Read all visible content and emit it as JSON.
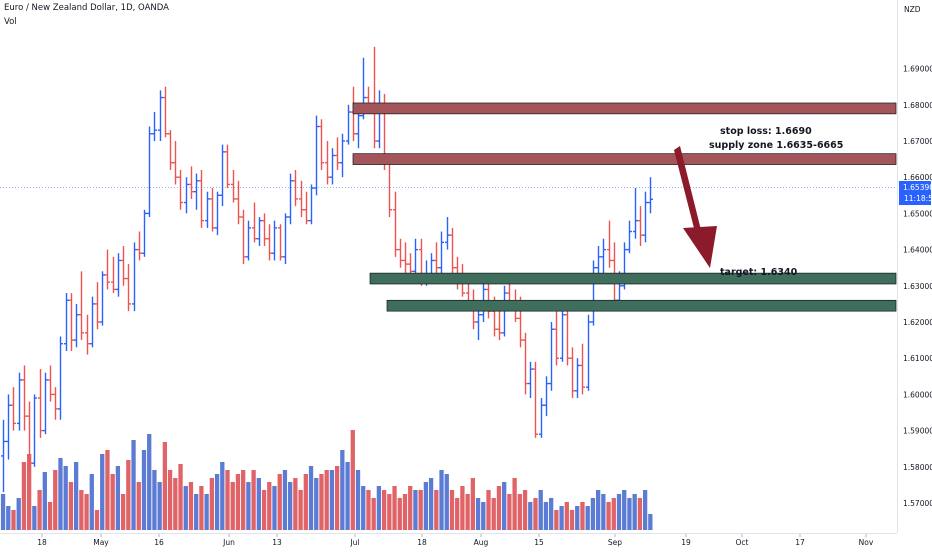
{
  "header": {
    "symbol_title": "Euro / New Zealand Dollar, 1D, OANDA",
    "volume_label": "Vol"
  },
  "price_axis": {
    "currency": "NZD",
    "last_price": "1.65390",
    "countdown": "11:18:50"
  },
  "annotations": {
    "stop_loss": "stop loss: 1.6690",
    "supply_zone": "supply zone 1.6635-6665",
    "target": "target: 1.6340"
  },
  "colors": {
    "up": "#2962ff",
    "down": "#ef5350",
    "vol_up": "#5b7bd5",
    "vol_down": "#e06368",
    "supply_fill": "#a4555a",
    "demand_fill": "#3f6e5c",
    "arrow": "#8b1a2b",
    "last_price_badge": "#2962ff"
  },
  "chart_data": {
    "type": "ohlc",
    "xlabel": "",
    "ylabel": "",
    "ylim": [
      1.5638,
      1.6988
    ],
    "grid": false,
    "y_ticks": [
      1.57,
      1.58,
      1.59,
      1.6,
      1.61,
      1.62,
      1.63,
      1.64,
      1.65,
      1.66,
      1.67,
      1.68,
      1.69
    ],
    "y_tick_labels": [
      "1.57000",
      "1.58000",
      "1.59000",
      "1.60000",
      "1.61000",
      "1.62000",
      "1.63000",
      "1.64000",
      "1.65000",
      "1.66000",
      "1.67000",
      "1.68000",
      "1.69000"
    ],
    "x_tick_labels": [
      "18",
      "May",
      "16",
      "Jun",
      "13",
      "Jul",
      "18",
      "Aug",
      "15",
      "Sep",
      "19",
      "Oct",
      "17",
      "Nov"
    ],
    "zones": [
      {
        "kind": "supply",
        "low": 1.6775,
        "high": 1.6805
      },
      {
        "kind": "supply",
        "low": 1.6635,
        "high": 1.6665
      },
      {
        "kind": "demand",
        "low": 1.6305,
        "high": 1.6335
      },
      {
        "kind": "demand",
        "low": 1.623,
        "high": 1.626
      }
    ],
    "last_price": 1.6539,
    "bars": [
      [
        1.583,
        1.593,
        1.573,
        1.587
      ],
      [
        1.587,
        1.6,
        1.582,
        1.597
      ],
      [
        1.597,
        1.602,
        1.59,
        1.592
      ],
      [
        1.592,
        1.606,
        1.59,
        1.604
      ],
      [
        1.604,
        1.608,
        1.59,
        1.594
      ],
      [
        1.594,
        1.598,
        1.579,
        1.581
      ],
      [
        1.581,
        1.6,
        1.58,
        1.599
      ],
      [
        1.599,
        1.607,
        1.588,
        1.59
      ],
      [
        1.59,
        1.606,
        1.589,
        1.604
      ],
      [
        1.604,
        1.608,
        1.598,
        1.6
      ],
      [
        1.6,
        1.602,
        1.593,
        1.596
      ],
      [
        1.596,
        1.616,
        1.593,
        1.614
      ],
      [
        1.614,
        1.628,
        1.612,
        1.626
      ],
      [
        1.626,
        1.628,
        1.612,
        1.615
      ],
      [
        1.615,
        1.625,
        1.613,
        1.622
      ],
      [
        1.622,
        1.634,
        1.615,
        1.617
      ],
      [
        1.617,
        1.622,
        1.611,
        1.614
      ],
      [
        1.614,
        1.627,
        1.613,
        1.625
      ],
      [
        1.625,
        1.631,
        1.618,
        1.62
      ],
      [
        1.62,
        1.634,
        1.619,
        1.633
      ],
      [
        1.633,
        1.64,
        1.629,
        1.631
      ],
      [
        1.631,
        1.638,
        1.628,
        1.629
      ],
      [
        1.629,
        1.639,
        1.627,
        1.637
      ],
      [
        1.637,
        1.641,
        1.63,
        1.632
      ],
      [
        1.632,
        1.636,
        1.623,
        1.625
      ],
      [
        1.625,
        1.642,
        1.623,
        1.64
      ],
      [
        1.64,
        1.645,
        1.637,
        1.639
      ],
      [
        1.639,
        1.651,
        1.638,
        1.65
      ],
      [
        1.65,
        1.674,
        1.649,
        1.672
      ],
      [
        1.672,
        1.678,
        1.67,
        1.673
      ],
      [
        1.673,
        1.684,
        1.67,
        1.682
      ],
      [
        1.682,
        1.685,
        1.671,
        1.672
      ],
      [
        1.672,
        1.673,
        1.662,
        1.664
      ],
      [
        1.664,
        1.67,
        1.658,
        1.66
      ],
      [
        1.66,
        1.662,
        1.651,
        1.653
      ],
      [
        1.653,
        1.66,
        1.65,
        1.658
      ],
      [
        1.658,
        1.663,
        1.654,
        1.656
      ],
      [
        1.656,
        1.661,
        1.651,
        1.659
      ],
      [
        1.659,
        1.662,
        1.646,
        1.648
      ],
      [
        1.648,
        1.656,
        1.646,
        1.654
      ],
      [
        1.654,
        1.657,
        1.645,
        1.646
      ],
      [
        1.646,
        1.656,
        1.644,
        1.655
      ],
      [
        1.655,
        1.669,
        1.652,
        1.667
      ],
      [
        1.667,
        1.669,
        1.657,
        1.658
      ],
      [
        1.658,
        1.662,
        1.653,
        1.654
      ],
      [
        1.654,
        1.659,
        1.647,
        1.649
      ],
      [
        1.649,
        1.651,
        1.636,
        1.638
      ],
      [
        1.638,
        1.648,
        1.637,
        1.646
      ],
      [
        1.646,
        1.653,
        1.642,
        1.643
      ],
      [
        1.643,
        1.649,
        1.641,
        1.648
      ],
      [
        1.648,
        1.65,
        1.641,
        1.643
      ],
      [
        1.643,
        1.647,
        1.637,
        1.639
      ],
      [
        1.639,
        1.648,
        1.637,
        1.646
      ],
      [
        1.646,
        1.647,
        1.637,
        1.638
      ],
      [
        1.638,
        1.65,
        1.636,
        1.649
      ],
      [
        1.649,
        1.661,
        1.647,
        1.659
      ],
      [
        1.659,
        1.662,
        1.652,
        1.654
      ],
      [
        1.654,
        1.659,
        1.649,
        1.651
      ],
      [
        1.651,
        1.656,
        1.647,
        1.648
      ],
      [
        1.648,
        1.658,
        1.647,
        1.657
      ],
      [
        1.657,
        1.677,
        1.655,
        1.674
      ],
      [
        1.674,
        1.676,
        1.662,
        1.664
      ],
      [
        1.664,
        1.67,
        1.658,
        1.66
      ],
      [
        1.66,
        1.668,
        1.658,
        1.666
      ],
      [
        1.666,
        1.671,
        1.662,
        1.664
      ],
      [
        1.664,
        1.672,
        1.66,
        1.67
      ],
      [
        1.67,
        1.68,
        1.669,
        1.678
      ],
      [
        1.678,
        1.685,
        1.67,
        1.672
      ],
      [
        1.672,
        1.678,
        1.668,
        1.677
      ],
      [
        1.677,
        1.693,
        1.676,
        1.682
      ],
      [
        1.682,
        1.685,
        1.678,
        1.68
      ],
      [
        1.68,
        1.696,
        1.668,
        1.67
      ],
      [
        1.67,
        1.684,
        1.668,
        1.679
      ],
      [
        1.679,
        1.683,
        1.662,
        1.664
      ],
      [
        1.664,
        1.665,
        1.649,
        1.651
      ],
      [
        1.651,
        1.656,
        1.638,
        1.64
      ],
      [
        1.64,
        1.643,
        1.635,
        1.637
      ],
      [
        1.637,
        1.642,
        1.633,
        1.636
      ],
      [
        1.636,
        1.639,
        1.632,
        1.634
      ],
      [
        1.634,
        1.643,
        1.632,
        1.64
      ],
      [
        1.64,
        1.643,
        1.63,
        1.632
      ],
      [
        1.632,
        1.637,
        1.63,
        1.633
      ],
      [
        1.633,
        1.639,
        1.631,
        1.637
      ],
      [
        1.637,
        1.642,
        1.633,
        1.635
      ],
      [
        1.635,
        1.645,
        1.632,
        1.642
      ],
      [
        1.642,
        1.649,
        1.64,
        1.644
      ],
      [
        1.644,
        1.646,
        1.633,
        1.635
      ],
      [
        1.635,
        1.638,
        1.629,
        1.631
      ],
      [
        1.631,
        1.636,
        1.627,
        1.628
      ],
      [
        1.628,
        1.633,
        1.623,
        1.625
      ],
      [
        1.625,
        1.629,
        1.618,
        1.62
      ],
      [
        1.62,
        1.626,
        1.615,
        1.622
      ],
      [
        1.622,
        1.631,
        1.62,
        1.629
      ],
      [
        1.629,
        1.633,
        1.621,
        1.623
      ],
      [
        1.623,
        1.627,
        1.616,
        1.618
      ],
      [
        1.618,
        1.623,
        1.615,
        1.617
      ],
      [
        1.617,
        1.63,
        1.616,
        1.628
      ],
      [
        1.628,
        1.631,
        1.623,
        1.625
      ],
      [
        1.625,
        1.629,
        1.62,
        1.621
      ],
      [
        1.621,
        1.627,
        1.613,
        1.615
      ],
      [
        1.615,
        1.617,
        1.6,
        1.603
      ],
      [
        1.603,
        1.609,
        1.599,
        1.607
      ],
      [
        1.607,
        1.609,
        1.588,
        1.589
      ],
      [
        1.589,
        1.599,
        1.588,
        1.597
      ],
      [
        1.597,
        1.605,
        1.594,
        1.603
      ],
      [
        1.603,
        1.62,
        1.601,
        1.618
      ],
      [
        1.618,
        1.623,
        1.608,
        1.61
      ],
      [
        1.61,
        1.625,
        1.609,
        1.622
      ],
      [
        1.622,
        1.626,
        1.608,
        1.61
      ],
      [
        1.61,
        1.613,
        1.599,
        1.601
      ],
      [
        1.601,
        1.61,
        1.599,
        1.608
      ],
      [
        1.608,
        1.614,
        1.6,
        1.602
      ],
      [
        1.602,
        1.622,
        1.601,
        1.62
      ],
      [
        1.62,
        1.637,
        1.619,
        1.635
      ],
      [
        1.635,
        1.641,
        1.633,
        1.638
      ],
      [
        1.638,
        1.643,
        1.632,
        1.64
      ],
      [
        1.64,
        1.648,
        1.635,
        1.637
      ],
      [
        1.637,
        1.642,
        1.624,
        1.626
      ],
      [
        1.626,
        1.634,
        1.624,
        1.63
      ],
      [
        1.63,
        1.642,
        1.629,
        1.64
      ],
      [
        1.64,
        1.648,
        1.639,
        1.645
      ],
      [
        1.645,
        1.657,
        1.643,
        1.648
      ],
      [
        1.648,
        1.652,
        1.641,
        1.644
      ],
      [
        1.644,
        1.656,
        1.642,
        1.653
      ],
      [
        1.653,
        1.66,
        1.65,
        1.6539
      ]
    ],
    "volume": [
      0.18,
      0.12,
      0.1,
      0.16,
      0.34,
      0.38,
      0.12,
      0.2,
      0.29,
      0.14,
      0.3,
      0.36,
      0.32,
      0.24,
      0.34,
      0.2,
      0.18,
      0.28,
      0.1,
      0.38,
      0.4,
      0.28,
      0.32,
      0.18,
      0.35,
      0.45,
      0.24,
      0.4,
      0.48,
      0.3,
      0.24,
      0.44,
      0.3,
      0.26,
      0.33,
      0.22,
      0.24,
      0.18,
      0.22,
      0.18,
      0.26,
      0.28,
      0.34,
      0.3,
      0.24,
      0.28,
      0.3,
      0.24,
      0.3,
      0.26,
      0.2,
      0.24,
      0.22,
      0.28,
      0.3,
      0.24,
      0.26,
      0.2,
      0.28,
      0.32,
      0.26,
      0.28,
      0.3,
      0.3,
      0.32,
      0.4,
      0.34,
      0.5,
      0.3,
      0.22,
      0.2,
      0.16,
      0.22,
      0.2,
      0.18,
      0.22,
      0.16,
      0.18,
      0.22,
      0.2,
      0.2,
      0.24,
      0.26,
      0.2,
      0.3,
      0.28,
      0.2,
      0.16,
      0.22,
      0.18,
      0.26,
      0.16,
      0.14,
      0.2,
      0.16,
      0.22,
      0.24,
      0.18,
      0.26,
      0.18,
      0.2,
      0.14,
      0.16,
      0.2,
      0.14,
      0.16,
      0.1,
      0.12,
      0.14,
      0.1,
      0.12,
      0.14,
      0.12,
      0.16,
      0.2,
      0.18,
      0.14,
      0.16,
      0.18,
      0.2,
      0.16,
      0.18,
      0.16,
      0.2,
      0.08
    ]
  }
}
